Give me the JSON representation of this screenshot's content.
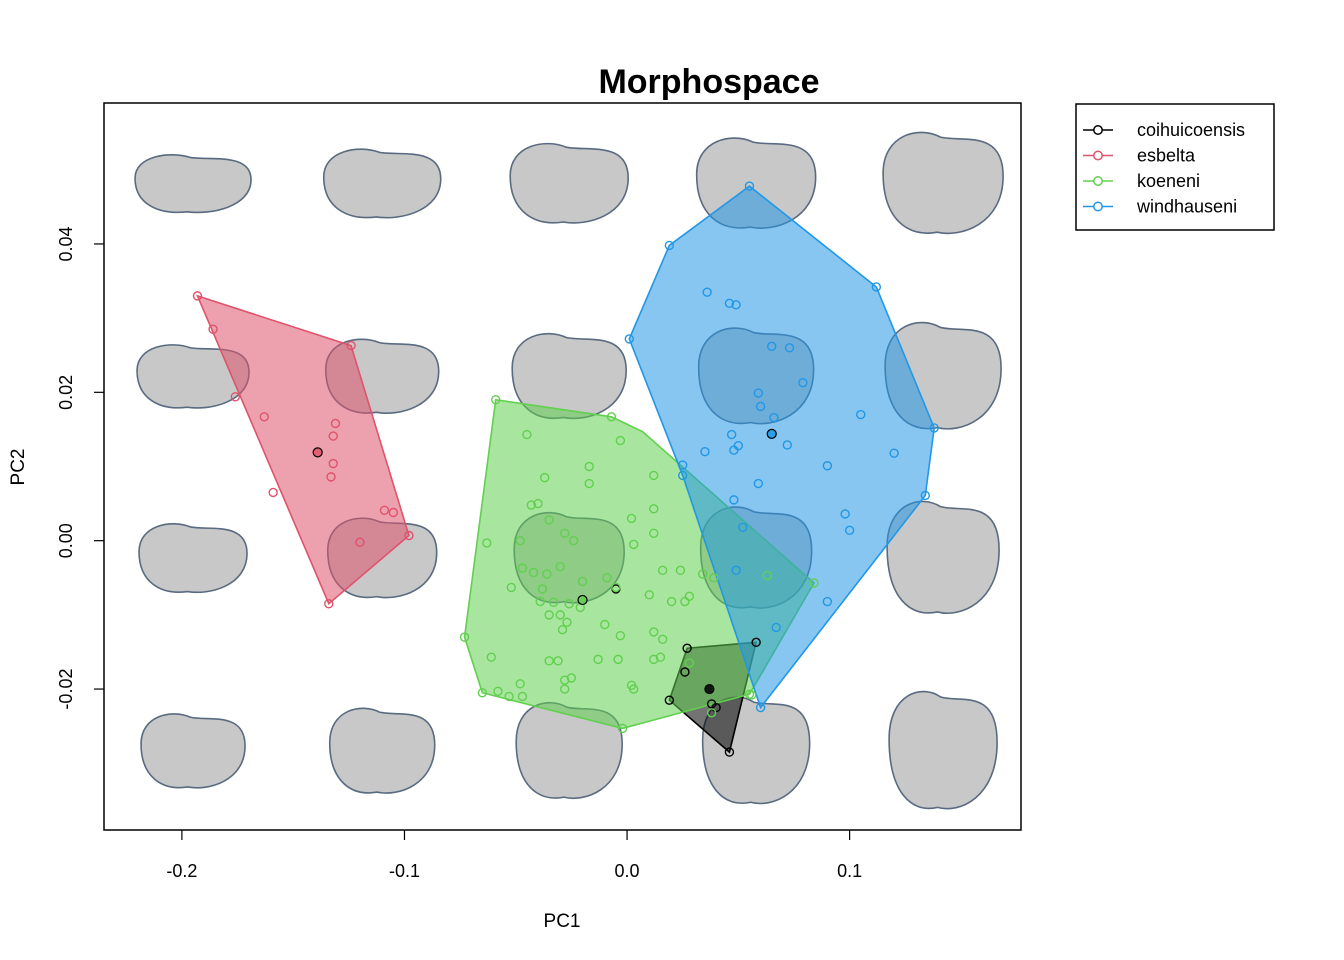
{
  "chart_data": {
    "type": "scatter",
    "title": "Morphospace",
    "xlabel": "PC1",
    "ylabel": "PC2",
    "xlim": [
      -0.235,
      0.177
    ],
    "ylim": [
      -0.039,
      0.059
    ],
    "xticks": [
      -0.2,
      -0.1,
      0.0,
      0.1
    ],
    "xtick_labels": [
      "-0.2",
      "-0.1",
      "0.0",
      "0.1"
    ],
    "yticks": [
      -0.02,
      0.0,
      0.02,
      0.04
    ],
    "ytick_labels": [
      "-0.02",
      "0.00",
      "0.02",
      "0.04"
    ],
    "grid": false,
    "legend_position": "outside top-right",
    "background_shapes": {
      "description_grid_cols": [
        -0.195,
        -0.11,
        -0.026,
        0.058,
        0.142
      ],
      "description_grid_rows": [
        0.048,
        0.022,
        -0.0025,
        -0.0285
      ],
      "fill": "#c8c8c8",
      "stroke": "#5a6a80"
    },
    "series": [
      {
        "name": "coihuicoensis",
        "color": "#000000",
        "hull": [
          [
            0.019,
            -0.0215
          ],
          [
            0.027,
            -0.0145
          ],
          [
            0.058,
            -0.0137
          ],
          [
            0.046,
            -0.0285
          ]
        ],
        "centroid": [
          0.037,
          -0.02
        ],
        "points": [
          [
            0.019,
            -0.0215
          ],
          [
            0.027,
            -0.0145
          ],
          [
            0.058,
            -0.0137
          ],
          [
            0.046,
            -0.0285
          ],
          [
            0.026,
            -0.0177
          ],
          [
            0.04,
            -0.0225
          ],
          [
            0.038,
            -0.022
          ],
          [
            -0.005,
            -0.0065
          ]
        ]
      },
      {
        "name": "esbelta",
        "color": "#DF536B",
        "hull": [
          [
            -0.193,
            0.033
          ],
          [
            -0.124,
            0.0263
          ],
          [
            -0.098,
            0.0007
          ],
          [
            -0.134,
            -0.0085
          ]
        ],
        "centroid": [
          -0.139,
          0.0119
        ],
        "points": [
          [
            -0.193,
            0.033
          ],
          [
            -0.186,
            0.0285
          ],
          [
            -0.176,
            0.0194
          ],
          [
            -0.163,
            0.0167
          ],
          [
            -0.124,
            0.0263
          ],
          [
            -0.131,
            0.0158
          ],
          [
            -0.132,
            0.0141
          ],
          [
            -0.132,
            0.0104
          ],
          [
            -0.133,
            0.0086
          ],
          [
            -0.159,
            0.0065
          ],
          [
            -0.109,
            0.0041
          ],
          [
            -0.105,
            0.0038
          ],
          [
            -0.12,
            -0.0002
          ],
          [
            -0.098,
            0.0007
          ],
          [
            -0.134,
            -0.0085
          ]
        ]
      },
      {
        "name": "koeneni",
        "color": "#61D04F",
        "hull": [
          [
            -0.059,
            0.019
          ],
          [
            -0.007,
            0.0167
          ],
          [
            0.007,
            0.0147
          ],
          [
            0.084,
            -0.0057
          ],
          [
            0.055,
            -0.0207
          ],
          [
            -0.002,
            -0.0253
          ],
          [
            -0.065,
            -0.0205
          ],
          [
            -0.073,
            -0.013
          ]
        ],
        "centroid": [
          -0.02,
          -0.008
        ],
        "points": [
          [
            -0.059,
            0.019
          ],
          [
            -0.007,
            0.0167
          ],
          [
            -0.045,
            0.0143
          ],
          [
            -0.003,
            0.0135
          ],
          [
            -0.037,
            0.0085
          ],
          [
            -0.017,
            0.01
          ],
          [
            -0.017,
            0.0077
          ],
          [
            0.012,
            0.0088
          ],
          [
            -0.043,
            0.0048
          ],
          [
            -0.04,
            0.005
          ],
          [
            -0.035,
            0.0028
          ],
          [
            0.012,
            0.0043
          ],
          [
            0.002,
            0.003
          ],
          [
            -0.028,
            0.001
          ],
          [
            0.012,
            0.001
          ],
          [
            -0.063,
            -0.0003
          ],
          [
            -0.048,
            0.0
          ],
          [
            -0.024,
            0.0
          ],
          [
            0.003,
            -0.0005
          ],
          [
            -0.047,
            -0.0037
          ],
          [
            -0.03,
            -0.0035
          ],
          [
            -0.042,
            -0.0043
          ],
          [
            -0.036,
            -0.0045
          ],
          [
            -0.009,
            -0.005
          ],
          [
            0.016,
            -0.004
          ],
          [
            0.024,
            -0.004
          ],
          [
            0.034,
            -0.0045
          ],
          [
            0.039,
            -0.005
          ],
          [
            0.063,
            -0.0047
          ],
          [
            -0.052,
            -0.0063
          ],
          [
            -0.038,
            -0.0065
          ],
          [
            -0.02,
            -0.0055
          ],
          [
            -0.005,
            -0.0063
          ],
          [
            0.01,
            -0.0073
          ],
          [
            0.02,
            -0.0082
          ],
          [
            0.026,
            -0.0082
          ],
          [
            0.028,
            -0.0075
          ],
          [
            -0.039,
            -0.0082
          ],
          [
            -0.033,
            -0.0083
          ],
          [
            -0.026,
            -0.0085
          ],
          [
            -0.021,
            -0.009
          ],
          [
            -0.03,
            -0.01
          ],
          [
            -0.035,
            -0.01
          ],
          [
            -0.01,
            -0.0113
          ],
          [
            -0.027,
            -0.011
          ],
          [
            -0.029,
            -0.012
          ],
          [
            -0.003,
            -0.0128
          ],
          [
            0.012,
            -0.0123
          ],
          [
            0.016,
            -0.0133
          ],
          [
            -0.073,
            -0.013
          ],
          [
            -0.013,
            -0.016
          ],
          [
            -0.004,
            -0.016
          ],
          [
            0.012,
            -0.016
          ],
          [
            0.015,
            -0.0157
          ],
          [
            -0.061,
            -0.0157
          ],
          [
            -0.035,
            -0.0162
          ],
          [
            -0.031,
            -0.0162
          ],
          [
            -0.048,
            -0.0193
          ],
          [
            -0.028,
            -0.0188
          ],
          [
            -0.025,
            -0.0185
          ],
          [
            0.002,
            -0.0195
          ],
          [
            0.003,
            -0.02
          ],
          [
            -0.058,
            -0.0203
          ],
          [
            -0.053,
            -0.021
          ],
          [
            -0.047,
            -0.021
          ],
          [
            -0.028,
            -0.02
          ],
          [
            -0.065,
            -0.0205
          ],
          [
            -0.002,
            -0.0253
          ],
          [
            0.055,
            -0.0207
          ],
          [
            0.056,
            -0.0208
          ],
          [
            0.084,
            -0.0057
          ],
          [
            0.038,
            -0.0232
          ],
          [
            0.028,
            -0.0165
          ]
        ]
      },
      {
        "name": "windhauseni",
        "color": "#2297E6",
        "hull": [
          [
            0.055,
            0.0478
          ],
          [
            0.112,
            0.0342
          ],
          [
            0.138,
            0.0152
          ],
          [
            0.134,
            0.0061
          ],
          [
            0.06,
            -0.0225
          ],
          [
            0.025,
            0.0088
          ],
          [
            0.001,
            0.0272
          ],
          [
            0.019,
            0.0398
          ]
        ],
        "centroid": [
          0.065,
          0.0144
        ],
        "points": [
          [
            0.055,
            0.0478
          ],
          [
            0.019,
            0.0398
          ],
          [
            0.112,
            0.0342
          ],
          [
            0.036,
            0.0335
          ],
          [
            0.046,
            0.032
          ],
          [
            0.049,
            0.0318
          ],
          [
            0.001,
            0.0272
          ],
          [
            0.065,
            0.0262
          ],
          [
            0.073,
            0.026
          ],
          [
            0.079,
            0.0213
          ],
          [
            0.059,
            0.0199
          ],
          [
            0.06,
            0.0181
          ],
          [
            0.066,
            0.0166
          ],
          [
            0.105,
            0.017
          ],
          [
            0.138,
            0.0152
          ],
          [
            0.047,
            0.0143
          ],
          [
            0.065,
            0.0144
          ],
          [
            0.05,
            0.0128
          ],
          [
            0.048,
            0.0122
          ],
          [
            0.072,
            0.0129
          ],
          [
            0.035,
            0.012
          ],
          [
            0.12,
            0.0118
          ],
          [
            0.025,
            0.0102
          ],
          [
            0.09,
            0.0101
          ],
          [
            0.025,
            0.0088
          ],
          [
            0.059,
            0.0077
          ],
          [
            0.048,
            0.0055
          ],
          [
            0.134,
            0.0061
          ],
          [
            0.098,
            0.0036
          ],
          [
            0.1,
            0.0014
          ],
          [
            0.052,
            0.0018
          ],
          [
            0.049,
            -0.004
          ],
          [
            0.09,
            -0.0082
          ],
          [
            0.067,
            -0.0117
          ],
          [
            0.06,
            -0.0225
          ]
        ]
      }
    ]
  }
}
